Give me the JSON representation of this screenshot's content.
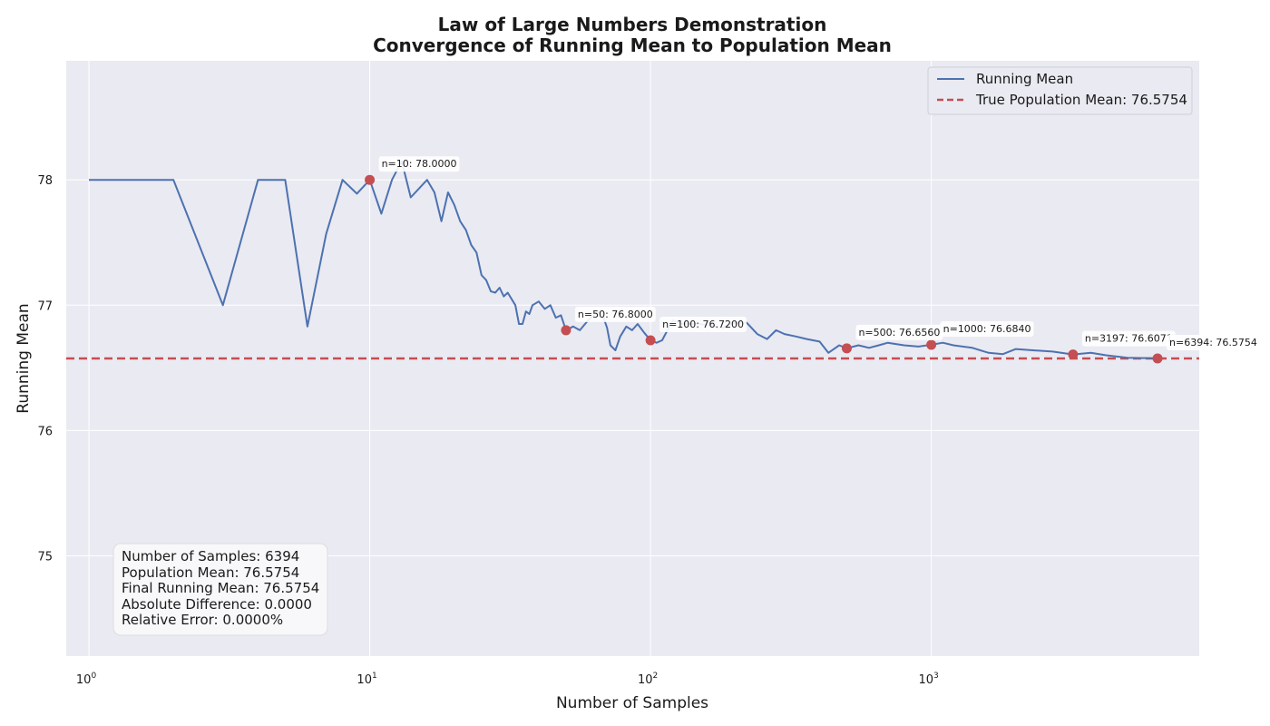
{
  "chart_data": {
    "type": "line",
    "title": [
      "Law of Large Numbers Demonstration",
      "Convergence of Running Mean to Population Mean"
    ],
    "xlabel": "Number of Samples",
    "ylabel": "Running Mean",
    "xscale": "log",
    "xlim": [
      0.83,
      9000
    ],
    "ylim": [
      74.2,
      78.95
    ],
    "grid": true,
    "legend_position": "top-right",
    "x_ticks": [
      {
        "value": 1,
        "base": "10",
        "exp": "0"
      },
      {
        "value": 10,
        "base": "10",
        "exp": "1"
      },
      {
        "value": 100,
        "base": "10",
        "exp": "2"
      },
      {
        "value": 1000,
        "base": "10",
        "exp": "3"
      }
    ],
    "y_ticks": [
      {
        "value": 75,
        "label": "75"
      },
      {
        "value": 76,
        "label": "76"
      },
      {
        "value": 77,
        "label": "77"
      },
      {
        "value": 78,
        "label": "78"
      }
    ],
    "series": [
      {
        "name": "Running Mean",
        "color": "#4c72b0",
        "style": "solid",
        "points": [
          [
            1,
            78.0
          ],
          [
            2,
            78.0
          ],
          [
            3,
            77.0
          ],
          [
            4,
            78.0
          ],
          [
            5,
            78.0
          ],
          [
            6,
            76.83
          ],
          [
            7,
            77.57
          ],
          [
            8,
            78.0
          ],
          [
            9,
            77.89
          ],
          [
            10,
            78.0
          ],
          [
            11,
            77.73
          ],
          [
            12,
            78.0
          ],
          [
            13,
            78.15
          ],
          [
            14,
            77.86
          ],
          [
            16,
            78.0
          ],
          [
            17,
            77.9
          ],
          [
            18,
            77.67
          ],
          [
            19,
            77.9
          ],
          [
            20,
            77.8
          ],
          [
            21,
            77.67
          ],
          [
            22,
            77.6
          ],
          [
            23,
            77.48
          ],
          [
            24,
            77.42
          ],
          [
            25,
            77.24
          ],
          [
            26,
            77.2
          ],
          [
            27,
            77.11
          ],
          [
            28,
            77.1
          ],
          [
            29,
            77.14
          ],
          [
            30,
            77.07
          ],
          [
            31,
            77.1
          ],
          [
            33,
            77.0
          ],
          [
            34,
            76.85
          ],
          [
            35,
            76.85
          ],
          [
            36,
            76.95
          ],
          [
            37,
            76.93
          ],
          [
            38,
            77.0
          ],
          [
            40,
            77.03
          ],
          [
            42,
            76.97
          ],
          [
            44,
            77.0
          ],
          [
            46,
            76.9
          ],
          [
            48,
            76.92
          ],
          [
            50,
            76.8
          ],
          [
            53,
            76.83
          ],
          [
            56,
            76.8
          ],
          [
            60,
            76.88
          ],
          [
            65,
            76.95
          ],
          [
            68,
            76.9
          ],
          [
            70,
            76.82
          ],
          [
            72,
            76.68
          ],
          [
            75,
            76.64
          ],
          [
            78,
            76.75
          ],
          [
            82,
            76.83
          ],
          [
            86,
            76.8
          ],
          [
            90,
            76.85
          ],
          [
            95,
            76.78
          ],
          [
            100,
            76.72
          ],
          [
            105,
            76.7
          ],
          [
            110,
            76.72
          ],
          [
            120,
            76.88
          ],
          [
            130,
            76.85
          ],
          [
            150,
            76.85
          ],
          [
            180,
            76.82
          ],
          [
            200,
            76.86
          ],
          [
            220,
            76.86
          ],
          [
            240,
            76.77
          ],
          [
            260,
            76.73
          ],
          [
            280,
            76.8
          ],
          [
            300,
            76.77
          ],
          [
            330,
            76.75
          ],
          [
            360,
            76.73
          ],
          [
            400,
            76.71
          ],
          [
            430,
            76.62
          ],
          [
            470,
            76.68
          ],
          [
            500,
            76.656
          ],
          [
            550,
            76.68
          ],
          [
            600,
            76.66
          ],
          [
            650,
            76.68
          ],
          [
            700,
            76.7
          ],
          [
            800,
            76.68
          ],
          [
            900,
            76.67
          ],
          [
            1000,
            76.684
          ],
          [
            1100,
            76.7
          ],
          [
            1200,
            76.68
          ],
          [
            1400,
            76.66
          ],
          [
            1600,
            76.62
          ],
          [
            1800,
            76.61
          ],
          [
            2000,
            76.65
          ],
          [
            2300,
            76.64
          ],
          [
            2700,
            76.63
          ],
          [
            3197,
            76.607
          ],
          [
            3700,
            76.62
          ],
          [
            4200,
            76.6
          ],
          [
            5000,
            76.58
          ],
          [
            6394,
            76.5754
          ]
        ]
      },
      {
        "name": "True Population Mean: 76.5754",
        "color": "#c44e52",
        "style": "dashed",
        "value": 76.5754
      }
    ],
    "annotations": [
      {
        "n": 10,
        "value": 78.0,
        "label": "n=10: 78.0000"
      },
      {
        "n": 50,
        "value": 76.8,
        "label": "n=50: 76.8000"
      },
      {
        "n": 100,
        "value": 76.72,
        "label": "n=100: 76.7200"
      },
      {
        "n": 500,
        "value": 76.656,
        "label": "n=500: 76.6560"
      },
      {
        "n": 1000,
        "value": 76.684,
        "label": "n=1000: 76.6840"
      },
      {
        "n": 3197,
        "value": 76.607,
        "label": "n=3197: 76.6071"
      },
      {
        "n": 6394,
        "value": 76.5754,
        "label": "n=6394: 76.5754"
      }
    ],
    "stats_box": [
      "Number of Samples: 6394",
      "Population Mean: 76.5754",
      "Final Running Mean: 76.5754",
      "Absolute Difference: 0.0000",
      "Relative Error: 0.0000%"
    ],
    "colors": {
      "plot_background": "#eaeaf2",
      "grid": "#ffffff",
      "marker": "#c44e52"
    }
  }
}
